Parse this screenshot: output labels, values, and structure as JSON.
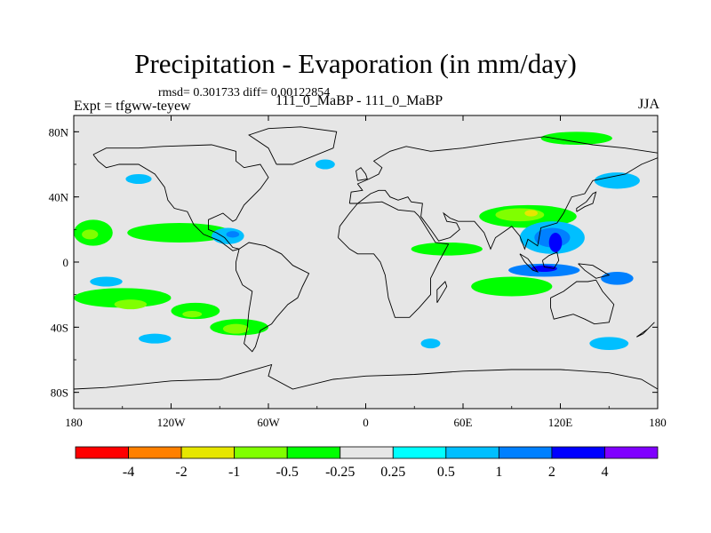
{
  "chart_data": {
    "type": "heatmap",
    "title": "Precipitation - Evaporation (in mm/day)",
    "stats_label": "rmsd= 0.301733 diff= 0.00122854",
    "left_label": "Expt = tfgww-teyew",
    "center_label": "111_0_MaBP - 111_0_MaBP",
    "right_label": "JJA",
    "x_ticks": [
      "180",
      "120W",
      "60W",
      "0",
      "60E",
      "120E",
      "180"
    ],
    "x_values": [
      -180,
      -120,
      -60,
      0,
      60,
      120,
      180
    ],
    "y_ticks": [
      "80N",
      "40N",
      "0",
      "40S",
      "80S"
    ],
    "y_values": [
      80,
      40,
      0,
      -40,
      -80
    ],
    "xlim": [
      -180,
      180
    ],
    "ylim": [
      -90,
      90
    ],
    "colorbar": {
      "labels": [
        "-4",
        "-2",
        "-1",
        "-0.5",
        "-0.25",
        "0.25",
        "0.5",
        "1",
        "2",
        "4"
      ],
      "colors": [
        "#ff0000",
        "#ff8000",
        "#e6e600",
        "#80ff00",
        "#00ff00",
        "#e6e6e6",
        "#00ffff",
        "#00bfff",
        "#0080ff",
        "#0000ff",
        "#8000ff"
      ]
    },
    "regions": [
      {
        "name": "n-pacific-east-band",
        "level": -0.5,
        "lon": -115,
        "lat": 18,
        "rx": 32,
        "ry": 6
      },
      {
        "name": "n-pacific-west-patch",
        "level": -0.5,
        "lon": -168,
        "lat": 18,
        "rx": 12,
        "ry": 8
      },
      {
        "name": "n-pacific-west-core",
        "level": -1,
        "lon": -170,
        "lat": 17,
        "rx": 5,
        "ry": 3
      },
      {
        "name": "central-america-moist",
        "level": 0.5,
        "lon": -85,
        "lat": 16,
        "rx": 10,
        "ry": 5
      },
      {
        "name": "central-america-core",
        "level": 1,
        "lon": -82,
        "lat": 17,
        "rx": 4,
        "ry": 2
      },
      {
        "name": "n-atlantic-west",
        "level": 0.5,
        "lon": -140,
        "lat": 51,
        "rx": 8,
        "ry": 3
      },
      {
        "name": "n-atlantic-cyan",
        "level": 0.5,
        "lon": -25,
        "lat": 60,
        "rx": 6,
        "ry": 3
      },
      {
        "name": "arctic-east",
        "level": -0.5,
        "lon": 130,
        "lat": 76,
        "rx": 22,
        "ry": 4
      },
      {
        "name": "siberia-cyan",
        "level": 0.5,
        "lon": 155,
        "lat": 50,
        "rx": 14,
        "ry": 5
      },
      {
        "name": "east-asia-band",
        "level": -0.5,
        "lon": 100,
        "lat": 28,
        "rx": 30,
        "ry": 7
      },
      {
        "name": "east-asia-core",
        "level": -1,
        "lon": 95,
        "lat": 29,
        "rx": 15,
        "ry": 4
      },
      {
        "name": "east-asia-peak",
        "level": -2,
        "lon": 102,
        "lat": 30,
        "rx": 4,
        "ry": 2
      },
      {
        "name": "monsoon-moist",
        "level": 0.5,
        "lon": 115,
        "lat": 15,
        "rx": 20,
        "ry": 10
      },
      {
        "name": "monsoon-core",
        "level": 1,
        "lon": 115,
        "lat": 15,
        "rx": 11,
        "ry": 6
      },
      {
        "name": "monsoon-peak",
        "level": 2,
        "lon": 117,
        "lat": 12,
        "rx": 4,
        "ry": 6
      },
      {
        "name": "arabian-sea-band",
        "level": -0.5,
        "lon": 50,
        "lat": 8,
        "rx": 22,
        "ry": 4
      },
      {
        "name": "maritime-continent",
        "level": 1,
        "lon": 110,
        "lat": -5,
        "rx": 22,
        "ry": 4
      },
      {
        "name": "maritime-core",
        "level": 2,
        "lon": 110,
        "lat": -4,
        "rx": 8,
        "ry": 2
      },
      {
        "name": "indian-ocean-dry",
        "level": -0.5,
        "lon": 90,
        "lat": -15,
        "rx": 25,
        "ry": 6
      },
      {
        "name": "sw-pacific-moist",
        "level": 1,
        "lon": 155,
        "lat": -10,
        "rx": 10,
        "ry": 4
      },
      {
        "name": "s-pacific-band",
        "level": -0.5,
        "lon": -150,
        "lat": -22,
        "rx": 30,
        "ry": 6
      },
      {
        "name": "s-pacific-core",
        "level": -1,
        "lon": -145,
        "lat": -26,
        "rx": 10,
        "ry": 3
      },
      {
        "name": "s-pacific-east",
        "level": -0.5,
        "lon": -105,
        "lat": -30,
        "rx": 15,
        "ry": 5
      },
      {
        "name": "s-pacific-east-core",
        "level": -1,
        "lon": -107,
        "lat": -32,
        "rx": 6,
        "ry": 2
      },
      {
        "name": "s-pacific-far-east",
        "level": -0.5,
        "lon": -78,
        "lat": -40,
        "rx": 18,
        "ry": 5
      },
      {
        "name": "s-pacific-far-east-core",
        "level": -1,
        "lon": -80,
        "lat": -41,
        "rx": 8,
        "ry": 3
      },
      {
        "name": "s-ocean-cyan-west",
        "level": 0.5,
        "lon": -130,
        "lat": -47,
        "rx": 10,
        "ry": 3
      },
      {
        "name": "s-ocean-cyan-mid",
        "level": 0.5,
        "lon": 40,
        "lat": -50,
        "rx": 6,
        "ry": 3
      },
      {
        "name": "s-indian-ocean-cyan",
        "level": 0.5,
        "lon": 150,
        "lat": -50,
        "rx": 12,
        "ry": 4
      },
      {
        "name": "equatorial-cyan-west",
        "level": 0.5,
        "lon": -160,
        "lat": -12,
        "rx": 10,
        "ry": 3
      }
    ],
    "coastlines": [
      {
        "name": "north-america",
        "points": [
          [
            -168,
            66
          ],
          [
            -160,
            70
          ],
          [
            -140,
            70
          ],
          [
            -125,
            71
          ],
          [
            -95,
            72
          ],
          [
            -80,
            68
          ],
          [
            -80,
            62
          ],
          [
            -75,
            58
          ],
          [
            -65,
            60
          ],
          [
            -60,
            52
          ],
          [
            -65,
            45
          ],
          [
            -75,
            35
          ],
          [
            -80,
            26
          ],
          [
            -82,
            25
          ],
          [
            -88,
            30
          ],
          [
            -97,
            26
          ],
          [
            -97,
            20
          ],
          [
            -92,
            18
          ],
          [
            -87,
            15
          ],
          [
            -82,
            9
          ],
          [
            -78,
            8
          ],
          [
            -82,
            7
          ],
          [
            -90,
            13
          ],
          [
            -100,
            17
          ],
          [
            -106,
            23
          ],
          [
            -110,
            31
          ],
          [
            -118,
            33
          ],
          [
            -122,
            38
          ],
          [
            -124,
            46
          ],
          [
            -130,
            54
          ],
          [
            -140,
            60
          ],
          [
            -152,
            60
          ],
          [
            -160,
            58
          ],
          [
            -165,
            62
          ],
          [
            -168,
            66
          ]
        ]
      },
      {
        "name": "south-america",
        "points": [
          [
            -78,
            8
          ],
          [
            -72,
            12
          ],
          [
            -62,
            10
          ],
          [
            -52,
            5
          ],
          [
            -45,
            -2
          ],
          [
            -35,
            -7
          ],
          [
            -39,
            -15
          ],
          [
            -42,
            -22
          ],
          [
            -48,
            -26
          ],
          [
            -55,
            -34
          ],
          [
            -58,
            -38
          ],
          [
            -65,
            -42
          ],
          [
            -68,
            -52
          ],
          [
            -70,
            -55
          ],
          [
            -75,
            -50
          ],
          [
            -73,
            -40
          ],
          [
            -72,
            -30
          ],
          [
            -70,
            -18
          ],
          [
            -76,
            -14
          ],
          [
            -80,
            -5
          ],
          [
            -80,
            0
          ],
          [
            -78,
            8
          ]
        ]
      },
      {
        "name": "greenland",
        "points": [
          [
            -55,
            60
          ],
          [
            -45,
            60
          ],
          [
            -20,
            70
          ],
          [
            -18,
            80
          ],
          [
            -40,
            83
          ],
          [
            -60,
            82
          ],
          [
            -72,
            78
          ],
          [
            -60,
            70
          ],
          [
            -55,
            60
          ]
        ]
      },
      {
        "name": "africa",
        "points": [
          [
            -17,
            15
          ],
          [
            -16,
            22
          ],
          [
            -10,
            30
          ],
          [
            -5,
            36
          ],
          [
            10,
            37
          ],
          [
            20,
            32
          ],
          [
            30,
            31
          ],
          [
            33,
            28
          ],
          [
            43,
            12
          ],
          [
            51,
            11
          ],
          [
            45,
            0
          ],
          [
            40,
            -10
          ],
          [
            40,
            -20
          ],
          [
            33,
            -28
          ],
          [
            27,
            -34
          ],
          [
            18,
            -34
          ],
          [
            14,
            -22
          ],
          [
            12,
            -8
          ],
          [
            9,
            0
          ],
          [
            5,
            5
          ],
          [
            -5,
            5
          ],
          [
            -10,
            8
          ],
          [
            -17,
            15
          ]
        ]
      },
      {
        "name": "eurasia",
        "points": [
          [
            -10,
            36
          ],
          [
            -9,
            43
          ],
          [
            -2,
            44
          ],
          [
            -5,
            48
          ],
          [
            2,
            51
          ],
          [
            8,
            54
          ],
          [
            10,
            58
          ],
          [
            5,
            62
          ],
          [
            15,
            68
          ],
          [
            25,
            71
          ],
          [
            40,
            68
          ],
          [
            60,
            70
          ],
          [
            80,
            73
          ],
          [
            110,
            77
          ],
          [
            140,
            72
          ],
          [
            160,
            70
          ],
          [
            180,
            67
          ],
          [
            180,
            64
          ],
          [
            170,
            60
          ],
          [
            160,
            54
          ],
          [
            140,
            50
          ],
          [
            135,
            42
          ],
          [
            127,
            40
          ],
          [
            122,
            30
          ],
          [
            118,
            24
          ],
          [
            108,
            21
          ],
          [
            106,
            10
          ],
          [
            100,
            14
          ],
          [
            98,
            8
          ],
          [
            95,
            16
          ],
          [
            90,
            22
          ],
          [
            80,
            15
          ],
          [
            77,
            8
          ],
          [
            73,
            18
          ],
          [
            67,
            25
          ],
          [
            57,
            25
          ],
          [
            52,
            27
          ],
          [
            48,
            30
          ],
          [
            50,
            25
          ],
          [
            56,
            24
          ],
          [
            58,
            20
          ],
          [
            52,
            15
          ],
          [
            45,
            13
          ],
          [
            40,
            20
          ],
          [
            34,
            28
          ],
          [
            35,
            36
          ],
          [
            28,
            37
          ],
          [
            26,
            40
          ],
          [
            20,
            38
          ],
          [
            15,
            40
          ],
          [
            12,
            44
          ],
          [
            8,
            44
          ],
          [
            3,
            42
          ],
          [
            -5,
            36
          ],
          [
            -10,
            36
          ]
        ]
      },
      {
        "name": "australia",
        "points": [
          [
            114,
            -22
          ],
          [
            122,
            -18
          ],
          [
            130,
            -12
          ],
          [
            137,
            -12
          ],
          [
            142,
            -11
          ],
          [
            146,
            -18
          ],
          [
            153,
            -26
          ],
          [
            150,
            -37
          ],
          [
            141,
            -38
          ],
          [
            135,
            -35
          ],
          [
            128,
            -32
          ],
          [
            116,
            -35
          ],
          [
            114,
            -28
          ],
          [
            114,
            -22
          ]
        ]
      },
      {
        "name": "antarctica",
        "points": [
          [
            -180,
            -78
          ],
          [
            -160,
            -77
          ],
          [
            -120,
            -73
          ],
          [
            -90,
            -72
          ],
          [
            -65,
            -65
          ],
          [
            -58,
            -63
          ],
          [
            -60,
            -70
          ],
          [
            -45,
            -78
          ],
          [
            -20,
            -72
          ],
          [
            0,
            -70
          ],
          [
            30,
            -69
          ],
          [
            60,
            -67
          ],
          [
            90,
            -66
          ],
          [
            120,
            -66
          ],
          [
            150,
            -68
          ],
          [
            170,
            -72
          ],
          [
            180,
            -78
          ]
        ]
      },
      {
        "name": "borneo",
        "points": [
          [
            109,
            1
          ],
          [
            113,
            4
          ],
          [
            118,
            6
          ],
          [
            119,
            1
          ],
          [
            116,
            -4
          ],
          [
            110,
            -3
          ],
          [
            109,
            1
          ]
        ]
      },
      {
        "name": "sumatra",
        "points": [
          [
            95,
            5
          ],
          [
            100,
            2
          ],
          [
            106,
            -6
          ],
          [
            103,
            -5
          ],
          [
            98,
            0
          ],
          [
            95,
            5
          ]
        ]
      },
      {
        "name": "new-guinea",
        "points": [
          [
            131,
            -1
          ],
          [
            140,
            -2
          ],
          [
            150,
            -8
          ],
          [
            142,
            -10
          ],
          [
            135,
            -5
          ],
          [
            131,
            -1
          ]
        ]
      },
      {
        "name": "madagascar",
        "points": [
          [
            44,
            -25
          ],
          [
            50,
            -15
          ],
          [
            49,
            -12
          ],
          [
            44,
            -17
          ],
          [
            44,
            -25
          ]
        ]
      },
      {
        "name": "japan",
        "points": [
          [
            130,
            31
          ],
          [
            135,
            34
          ],
          [
            140,
            36
          ],
          [
            142,
            43
          ],
          [
            140,
            42
          ],
          [
            136,
            37
          ],
          [
            130,
            33
          ],
          [
            130,
            31
          ]
        ]
      },
      {
        "name": "uk",
        "points": [
          [
            -5,
            50
          ],
          [
            1,
            51
          ],
          [
            0,
            54
          ],
          [
            -3,
            58
          ],
          [
            -6,
            56
          ],
          [
            -5,
            50
          ]
        ]
      },
      {
        "name": "new-zealand",
        "points": [
          [
            167,
            -46
          ],
          [
            174,
            -41
          ],
          [
            178,
            -37
          ],
          [
            175,
            -40
          ],
          [
            171,
            -44
          ],
          [
            167,
            -46
          ]
        ]
      }
    ]
  }
}
